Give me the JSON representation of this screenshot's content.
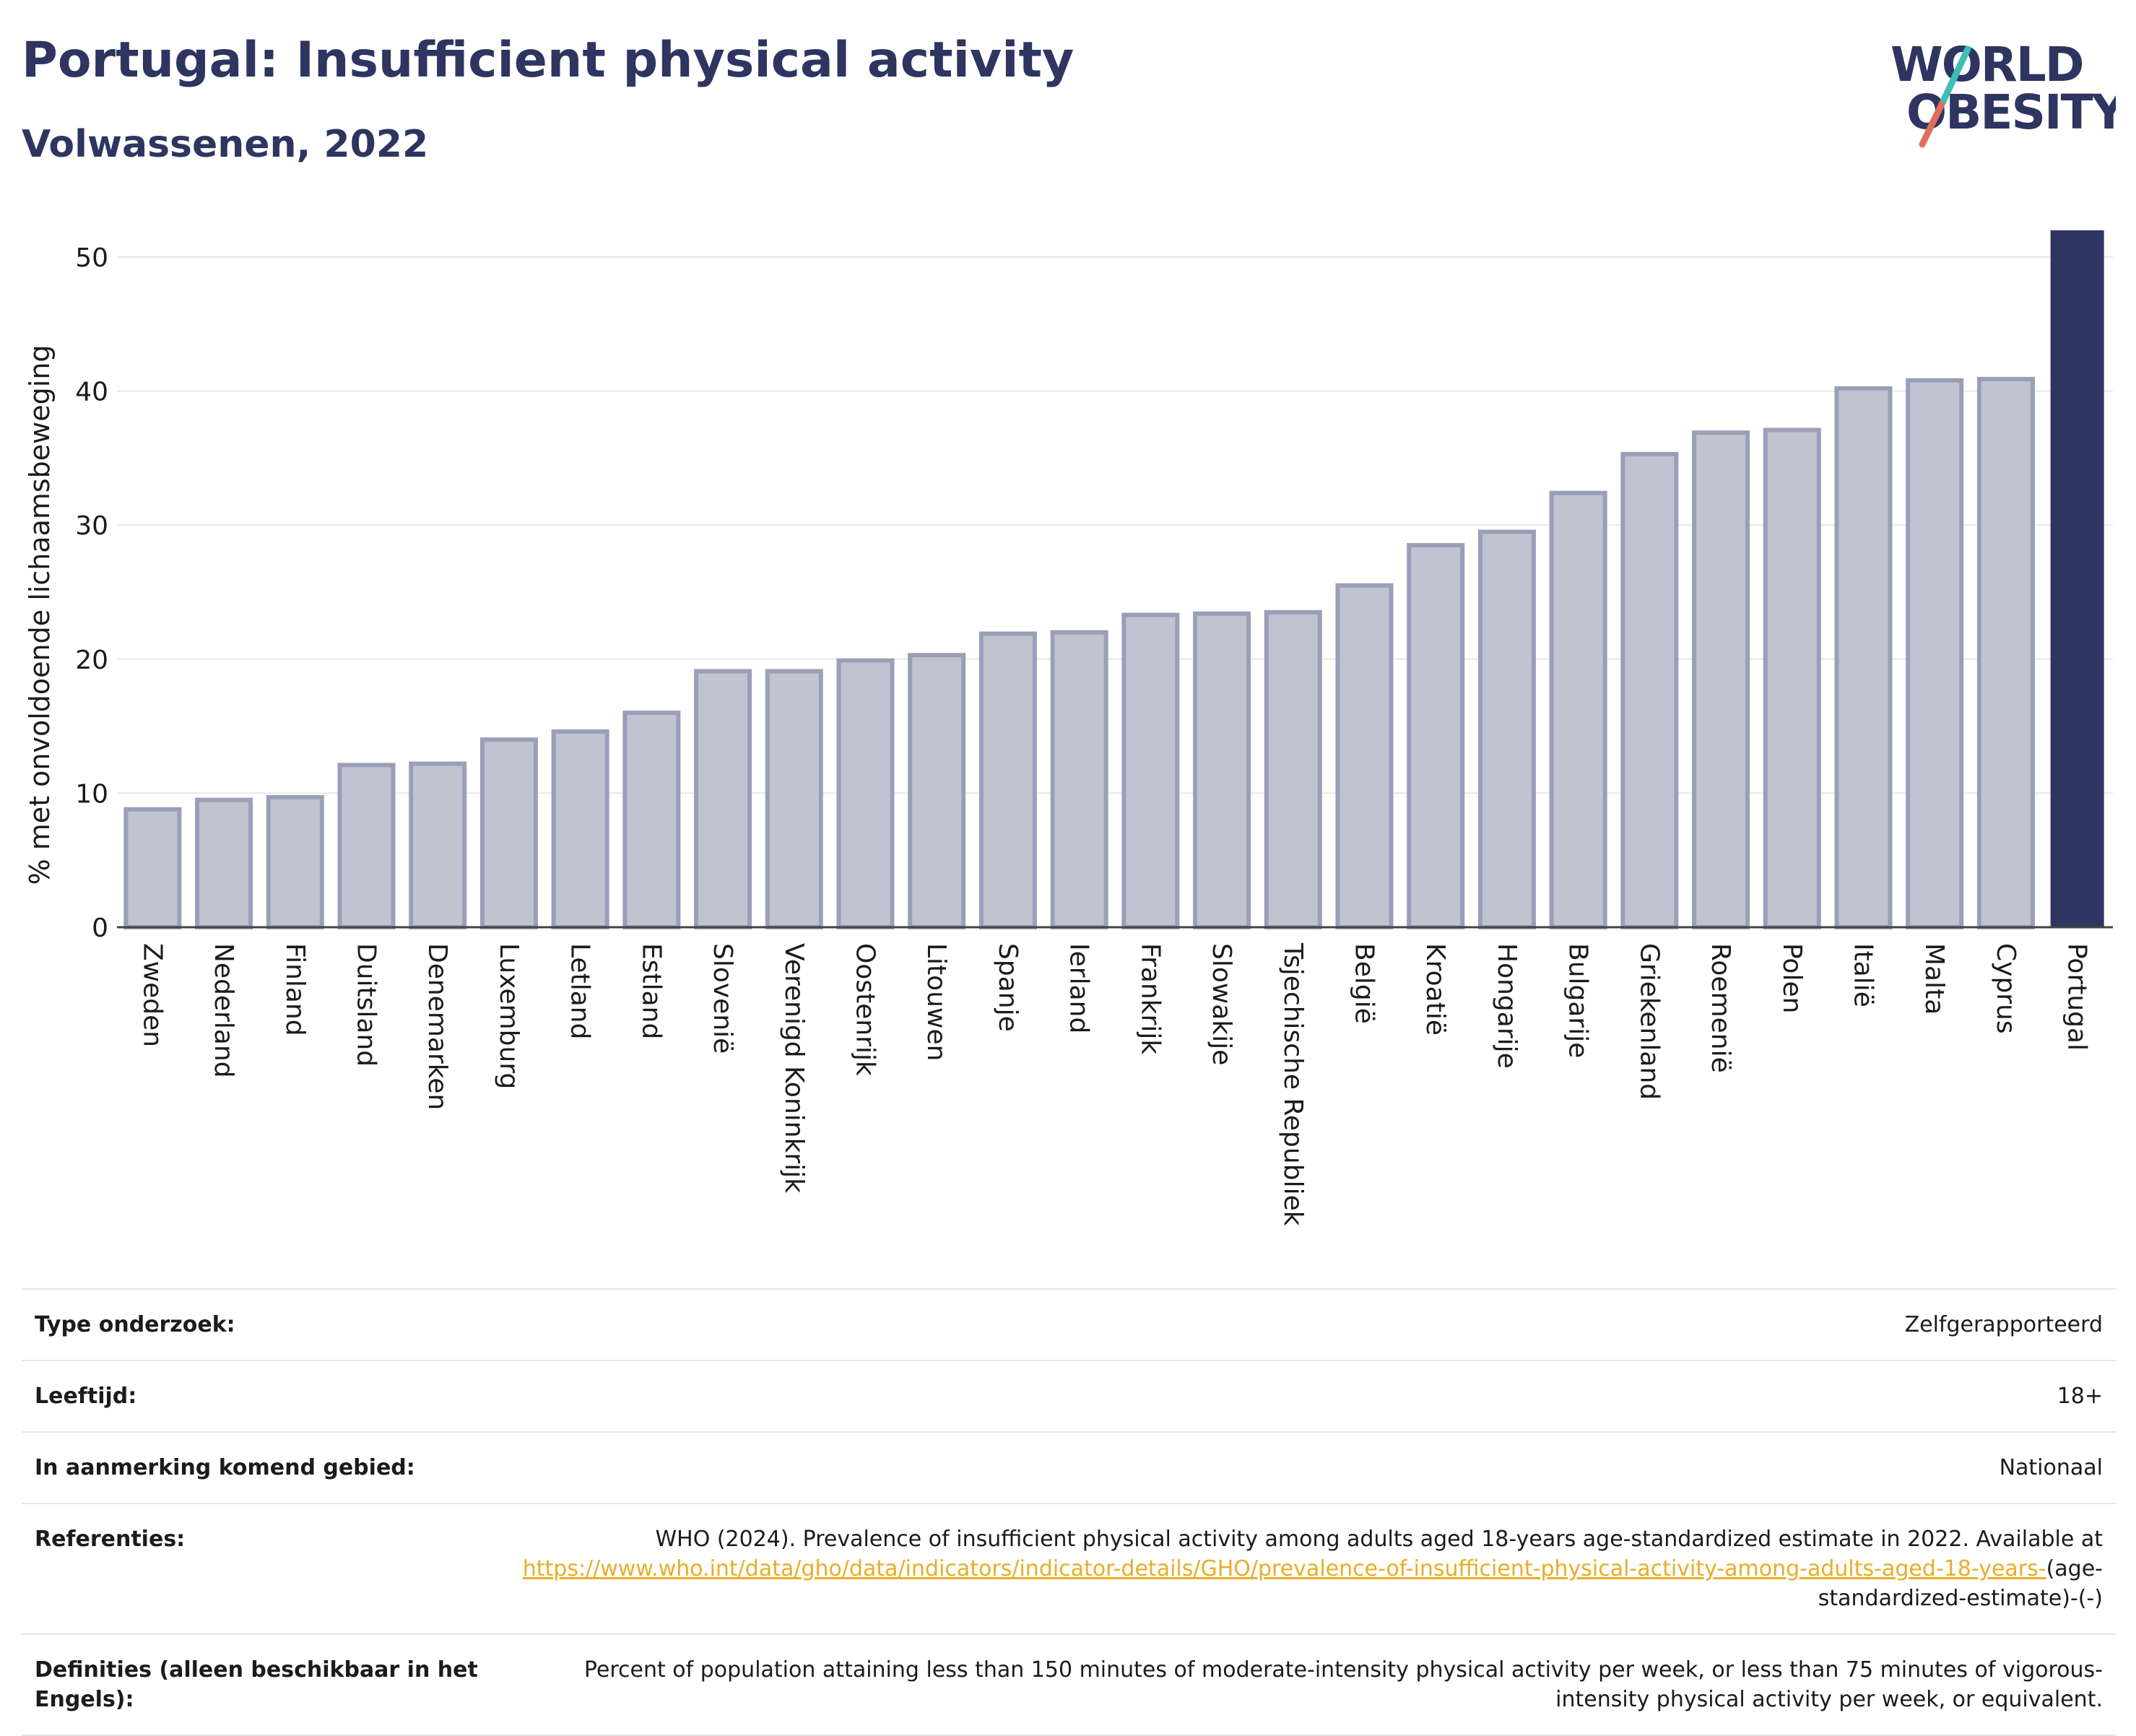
{
  "header": {
    "title": "Portugal: Insufficient physical activity",
    "subtitle": "Volwassenen, 2022"
  },
  "logo": {
    "line1": "WORLD",
    "line2": "OBESITY"
  },
  "chart_data": {
    "type": "bar",
    "title": "Portugal: Insufficient physical activity",
    "subtitle": "Volwassenen, 2022",
    "xlabel": "",
    "ylabel": "% met onvoldoende lichaamsbeweging",
    "ylim": [
      0,
      52
    ],
    "yticks": [
      0,
      10,
      20,
      30,
      40,
      50
    ],
    "grid": true,
    "highlight": "Portugal",
    "categories": [
      "Zweden",
      "Nederland",
      "Finland",
      "Duitsland",
      "Denemarken",
      "Luxemburg",
      "Letland",
      "Estland",
      "Slovenië",
      "Verenigd Koninkrijk",
      "Oostenrijk",
      "Litouwen",
      "Spanje",
      "Ierland",
      "Frankrijk",
      "Slowakije",
      "Tsjechische Republiek",
      "België",
      "Kroatië",
      "Hongarije",
      "Bulgarije",
      "Griekenland",
      "Roemenië",
      "Polen",
      "Italië",
      "Malta",
      "Cyprus",
      "Portugal"
    ],
    "values": [
      8.8,
      9.5,
      9.7,
      12.1,
      12.2,
      14.0,
      14.6,
      16.0,
      19.1,
      19.1,
      19.9,
      20.3,
      21.9,
      22.0,
      23.3,
      23.4,
      23.5,
      25.5,
      28.5,
      29.5,
      32.4,
      35.3,
      36.9,
      37.1,
      40.2,
      40.8,
      40.9,
      52.1
    ],
    "colors": {
      "bar": "#c0c3d0",
      "bar_border": "#9a9fb8",
      "highlight": "#2d3560"
    }
  },
  "info": {
    "rows": [
      {
        "label": "Type onderzoek:",
        "value": "Zelfgerapporteerd"
      },
      {
        "label": "Leeftijd:",
        "value": "18+"
      },
      {
        "label": "In aanmerking komend gebied:",
        "value": "Nationaal"
      }
    ],
    "references": {
      "label": "Referenties:",
      "text": "WHO (2024). Prevalence of insufficient physical activity among adults aged 18-years age-standardized estimate in 2022. Available at",
      "link": "https://www.who.int/data/gho/data/indicators/indicator-details/GHO/prevalence-of-insufficient-physical-activity-among-adults-aged-18-years-",
      "suffix": "(age-standardized-estimate)-(-)"
    },
    "definitions": {
      "label": "Definities (alleen beschikbaar in het Engels):",
      "value": "Percent of population attaining less than 150 minutes of moderate-intensity physical activity per week, or less than 75 minutes of vigorous-intensity physical activity per week, or equivalent."
    }
  }
}
